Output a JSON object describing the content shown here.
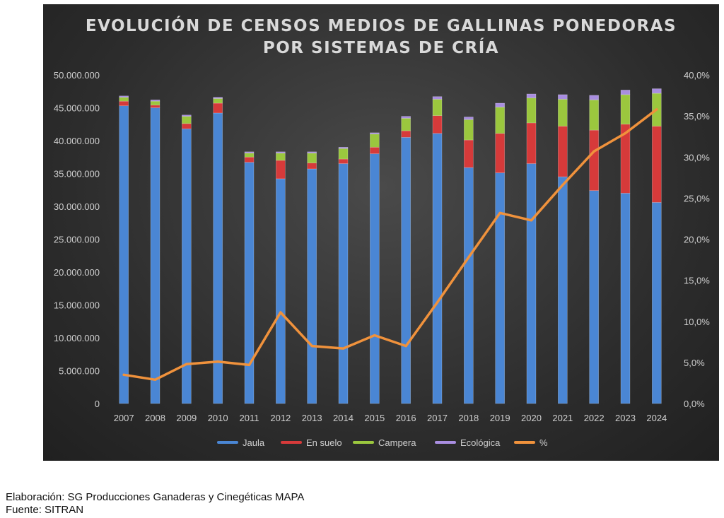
{
  "chart_data": {
    "type": "bar",
    "stacked": true,
    "title": [
      "EVOLUCIÓN DE CENSOS MEDIOS DE GALLINAS PONEDORAS",
      "POR SISTEMAS DE CRÍA"
    ],
    "categories": [
      "2007",
      "2008",
      "2009",
      "2010",
      "2011",
      "2012",
      "2013",
      "2014",
      "2015",
      "2016",
      "2017",
      "2018",
      "2019",
      "2020",
      "2021",
      "2022",
      "2023",
      "2024"
    ],
    "series": [
      {
        "name": "Jaula",
        "color": "#4a86d4",
        "values": [
          45300000,
          45000000,
          41800000,
          44200000,
          36700000,
          34200000,
          35700000,
          36500000,
          38000000,
          40500000,
          41100000,
          35900000,
          35100000,
          36500000,
          34500000,
          32400000,
          32000000,
          30600000
        ]
      },
      {
        "name": "En suelo",
        "color": "#d63a3a",
        "values": [
          700000,
          400000,
          800000,
          1500000,
          800000,
          2800000,
          900000,
          700000,
          1000000,
          1000000,
          2700000,
          4200000,
          6000000,
          6200000,
          7700000,
          9200000,
          10500000,
          11600000
        ]
      },
      {
        "name": "Campera",
        "color": "#9bc73e",
        "values": [
          600000,
          600000,
          1100000,
          700000,
          600000,
          1100000,
          1500000,
          1600000,
          2000000,
          1900000,
          2500000,
          3100000,
          4000000,
          3800000,
          4100000,
          4600000,
          4500000,
          5000000
        ]
      },
      {
        "name": "Ecológica",
        "color": "#a98ee0",
        "values": [
          200000,
          200000,
          200000,
          200000,
          200000,
          200000,
          200000,
          200000,
          200000,
          300000,
          400000,
          400000,
          600000,
          600000,
          700000,
          700000,
          700000,
          700000
        ]
      }
    ],
    "line_series": {
      "name": "%",
      "color": "#f0923c",
      "axis": "right",
      "values": [
        3.5,
        2.9,
        4.8,
        5.1,
        4.7,
        11.1,
        7.0,
        6.7,
        8.3,
        7.0,
        12.3,
        17.8,
        23.2,
        22.3,
        26.6,
        30.7,
        32.9,
        35.8
      ]
    },
    "y_left": {
      "min": 0,
      "max": 50000000,
      "ticks": [
        "0",
        "5.000.000",
        "10.000.000",
        "15.000.000",
        "20.000.000",
        "25.000.000",
        "30.000.000",
        "35.000.000",
        "40.000.000",
        "45.000.000",
        "50.000.000"
      ]
    },
    "y_right": {
      "min": 0,
      "max": 40,
      "ticks": [
        "0,0%",
        "5,0%",
        "10,0%",
        "15,0%",
        "20,0%",
        "25,0%",
        "30,0%",
        "35,0%",
        "40,0%"
      ]
    },
    "legend_position": "bottom",
    "grid": false
  },
  "footer": {
    "elaboracion": "Elaboración: SG Producciones Ganaderas y Cinegéticas MAPA",
    "fuente": "Fuente: SITRAN"
  }
}
